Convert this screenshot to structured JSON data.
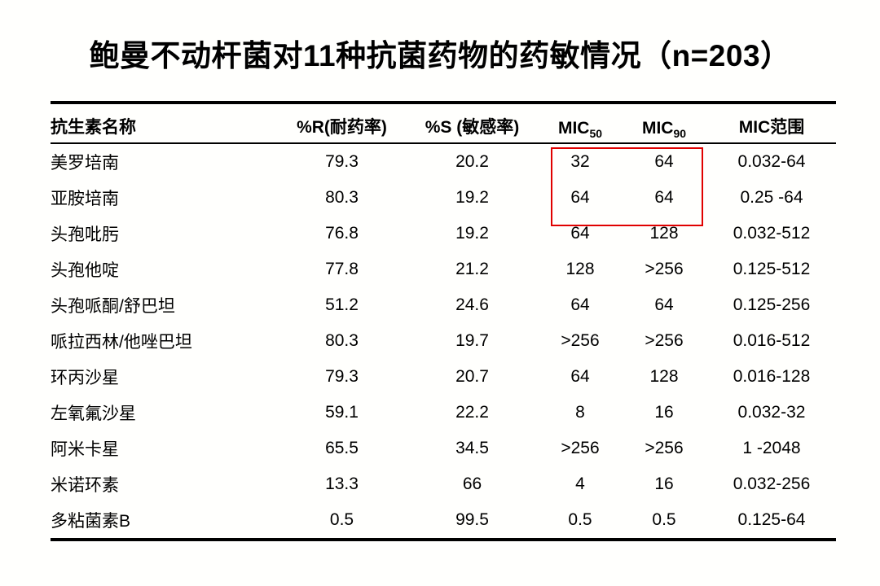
{
  "slide": {
    "title": "鲍曼不动杆菌对11种抗菌药物的药敏情况（n=203）"
  },
  "table": {
    "headers": [
      {
        "label": "抗生素名称"
      },
      {
        "label": "%R(耐药率)"
      },
      {
        "label": "%S (敏感率)"
      },
      {
        "label": "MIC",
        "sub": "50"
      },
      {
        "label": "MIC",
        "sub": "90"
      },
      {
        "label": "MIC范围"
      }
    ],
    "rows": [
      [
        "美罗培南",
        "79.3",
        "20.2",
        "32",
        "64",
        "0.032-64"
      ],
      [
        "亚胺培南",
        "80.3",
        "19.2",
        "64",
        "64",
        "0.25 -64"
      ],
      [
        "头孢吡肟",
        "76.8",
        "19.2",
        "64",
        "128",
        "0.032-512"
      ],
      [
        "头孢他啶",
        "77.8",
        "21.2",
        "128",
        ">256",
        "0.125-512"
      ],
      [
        "头孢哌酮/舒巴坦",
        "51.2",
        "24.6",
        "64",
        "64",
        "0.125-256"
      ],
      [
        "哌拉西林/他唑巴坦",
        "80.3",
        "19.7",
        ">256",
        ">256",
        "0.016-512"
      ],
      [
        "环丙沙星",
        "79.3",
        "20.7",
        "64",
        "128",
        "0.016-128"
      ],
      [
        "左氧氟沙星",
        "59.1",
        "22.2",
        "8",
        "16",
        "0.032-32"
      ],
      [
        "阿米卡星",
        "65.5",
        "34.5",
        ">256",
        ">256",
        "1 -2048"
      ],
      [
        "米诺环素",
        "13.3",
        "66",
        "4",
        "16",
        "0.032-256"
      ],
      [
        "多粘菌素B",
        "0.5",
        "99.5",
        "0.5",
        "0.5",
        "0.125-64"
      ]
    ]
  },
  "highlight": {
    "color": "#e00000",
    "covers": "MIC50 and MIC90 values of rows 美罗培南 and 亚胺培南"
  }
}
